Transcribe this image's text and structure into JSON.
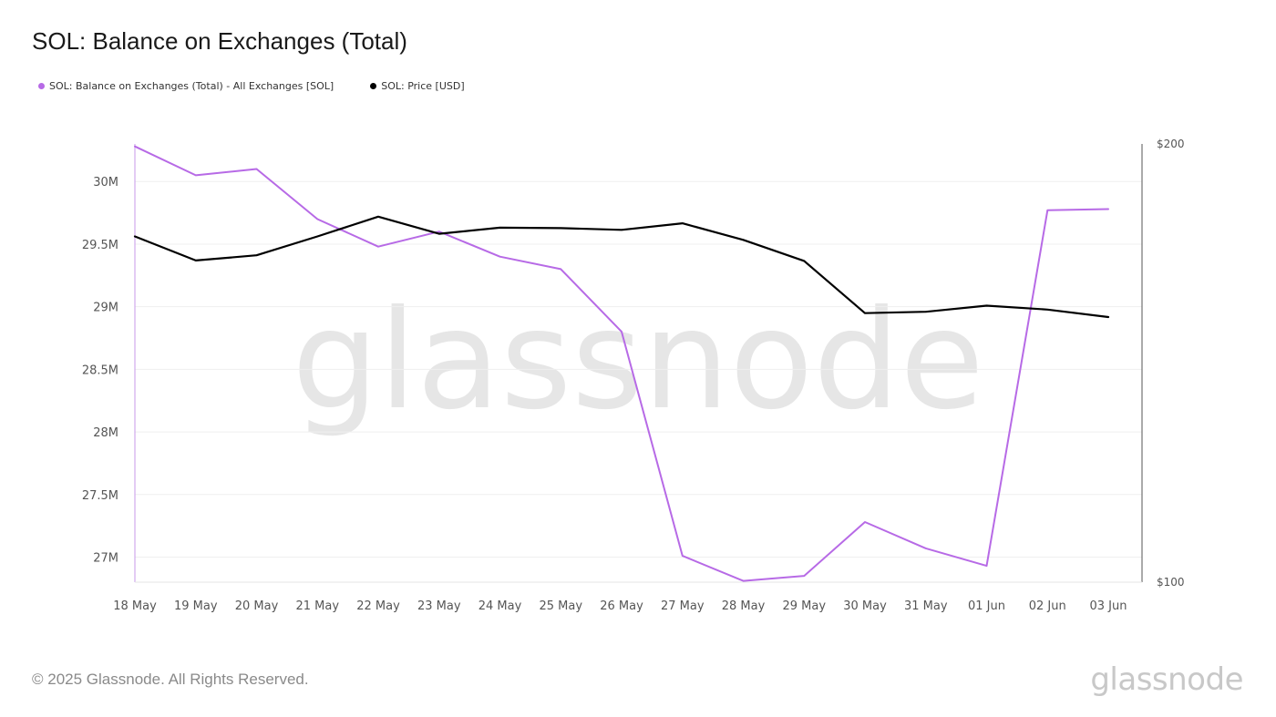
{
  "header": {
    "title": "SOL: Balance on Exchanges (Total)"
  },
  "legend": {
    "items": [
      {
        "label": "SOL: Balance on Exchanges (Total) - All Exchanges [SOL]",
        "color": "#b76ae6"
      },
      {
        "label": "SOL: Price [USD]",
        "color": "#000000"
      }
    ]
  },
  "watermark": {
    "text": "glassnode"
  },
  "footer": {
    "copyright": "© 2025 Glassnode. All Rights Reserved.",
    "logo_text": "glassnode"
  },
  "chart_data": {
    "type": "line",
    "title": "SOL: Balance on Exchanges (Total)",
    "x": [
      "18 May",
      "19 May",
      "20 May",
      "21 May",
      "22 May",
      "23 May",
      "24 May",
      "25 May",
      "26 May",
      "27 May",
      "28 May",
      "29 May",
      "30 May",
      "31 May",
      "01 Jun",
      "02 Jun",
      "03 Jun"
    ],
    "left_axis": {
      "ylim": [
        26800000,
        30300000
      ],
      "ticks": [
        27000000,
        27500000,
        28000000,
        28500000,
        29000000,
        29500000,
        30000000
      ],
      "tick_labels": [
        "27M",
        "27.5M",
        "28M",
        "28.5M",
        "29M",
        "29.5M",
        "30M"
      ]
    },
    "right_axis": {
      "ylim": [
        100,
        200
      ],
      "ticks": [
        100,
        200
      ],
      "tick_labels": [
        "$100",
        "$200"
      ]
    },
    "grid": true,
    "legend_position": "top-left",
    "series": [
      {
        "name": "SOL: Balance on Exchanges (Total) - All Exchanges [SOL]",
        "axis": "left",
        "color": "#b76ae6",
        "values": [
          30280000,
          30050000,
          30100000,
          29700000,
          29480000,
          29600000,
          29400000,
          29300000,
          28800000,
          27010000,
          26810000,
          26850000,
          27280000,
          27070000,
          26930000,
          29770000,
          29780000
        ]
      },
      {
        "name": "SOL: Price [USD]",
        "axis": "right",
        "color": "#000000",
        "values": [
          178.9,
          173.4,
          174.6,
          178.9,
          183.4,
          179.5,
          180.9,
          180.8,
          180.4,
          181.9,
          178.1,
          173.3,
          161.4,
          161.7,
          163.1,
          162.2,
          160.5
        ]
      }
    ]
  }
}
